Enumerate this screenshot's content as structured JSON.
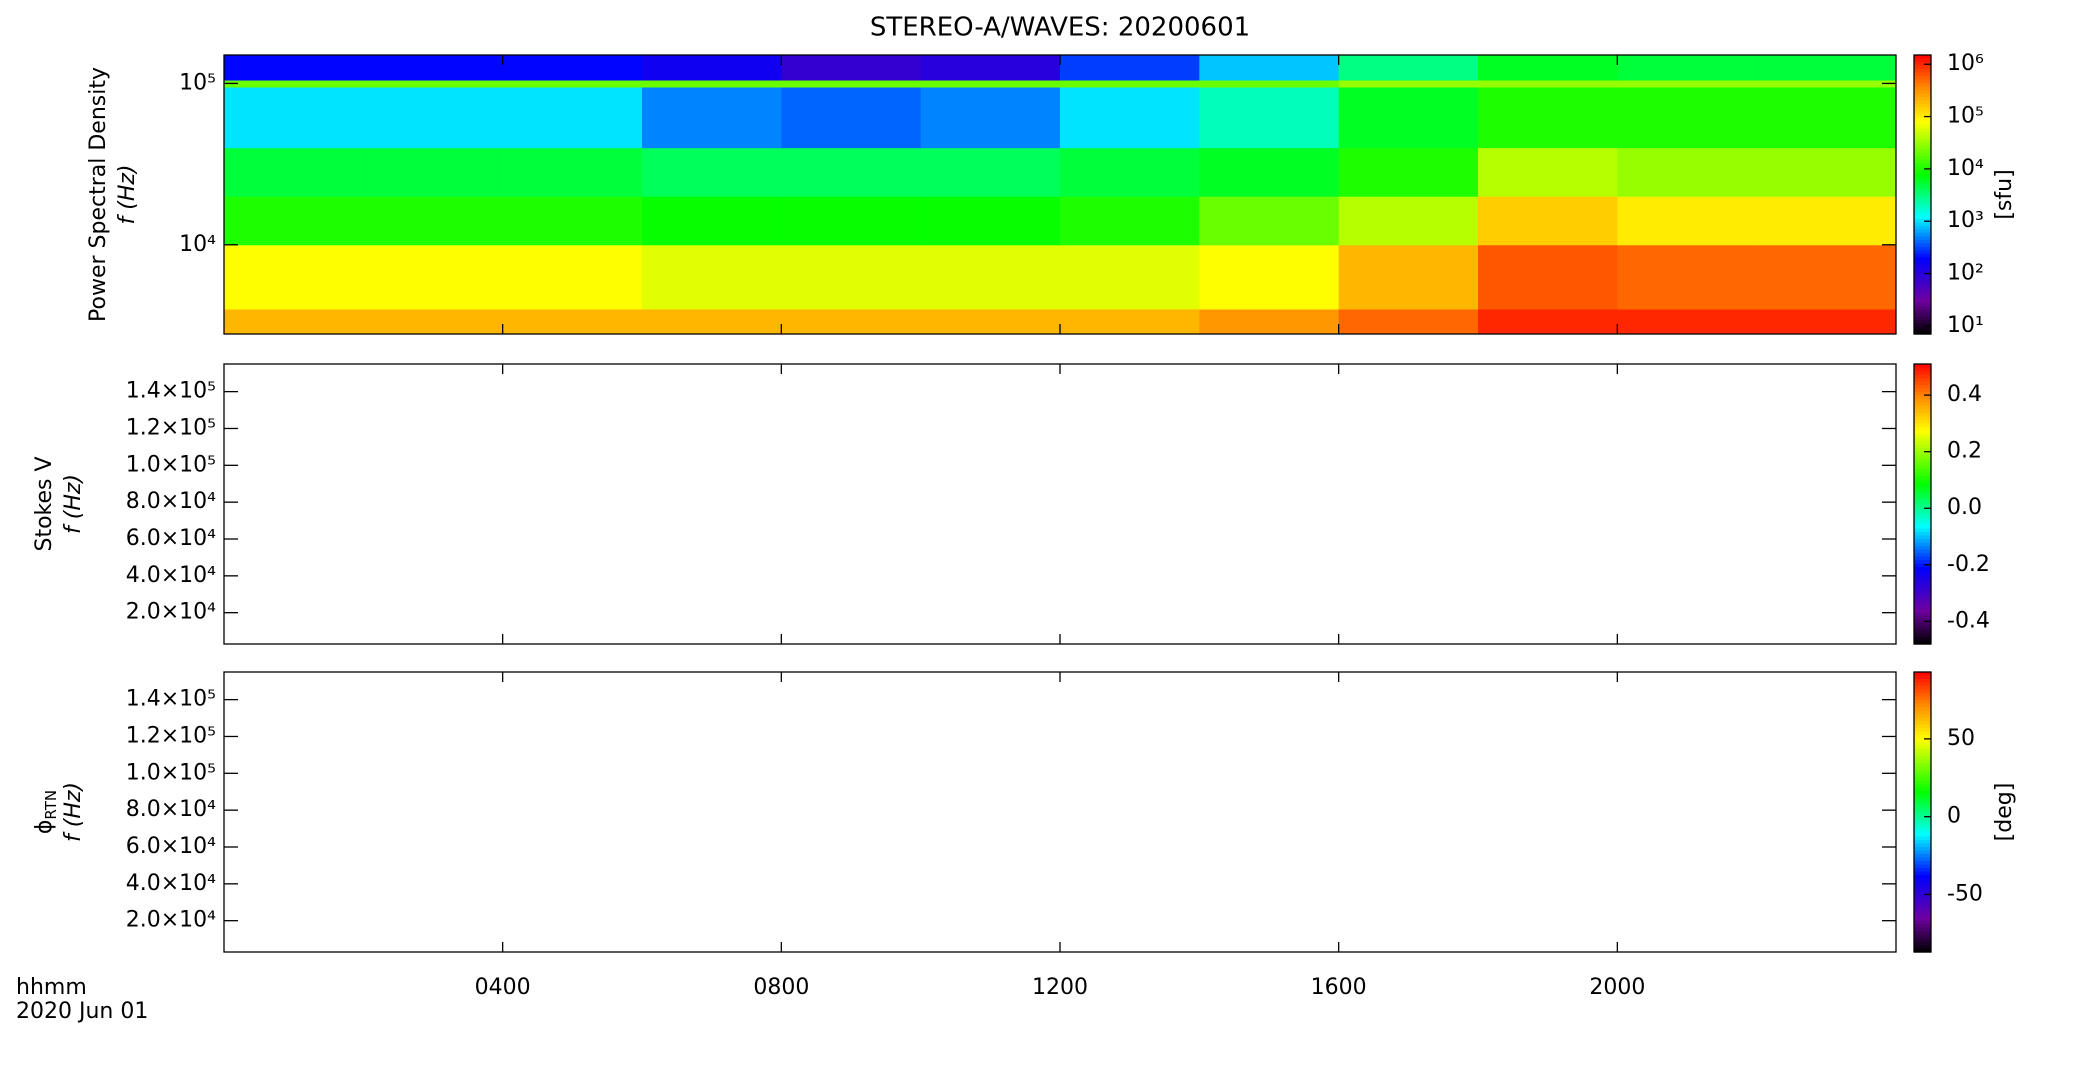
{
  "title": "STEREO-A/WAVES: 20200601",
  "x_axis": {
    "xlabel": "hhmm",
    "date": "2020 Jun 01",
    "xlim": [
      0,
      24
    ],
    "xticks": [
      {
        "value": 4,
        "label": "0400"
      },
      {
        "value": 8,
        "label": "0800"
      },
      {
        "value": 12,
        "label": "1200"
      },
      {
        "value": 16,
        "label": "1600"
      },
      {
        "value": 20,
        "label": "2000"
      }
    ]
  },
  "chart_data": [
    {
      "type": "heatmap",
      "ylabel": "Power Spectral Density",
      "ylabel2": "f (Hz)",
      "ylog": true,
      "ylim": [
        2800,
        150000
      ],
      "yticks": [
        {
          "value": 10000,
          "label": "10⁴"
        },
        {
          "value": 100000,
          "label": "10⁵"
        }
      ],
      "x_edges": [
        0,
        2,
        4,
        6,
        8,
        10,
        12,
        14,
        16,
        18,
        20,
        22,
        24
      ],
      "y_edges": [
        2800,
        4000,
        10000,
        20000,
        40000,
        95000,
        105000,
        150000
      ],
      "z": [
        [
          200000,
          200000,
          200000,
          200000,
          200000,
          200000,
          200000,
          300000,
          500000,
          1000000,
          1000000,
          1000000
        ],
        [
          80000,
          80000,
          80000,
          60000,
          60000,
          60000,
          60000,
          80000,
          200000,
          600000,
          500000,
          500000
        ],
        [
          10000,
          10000,
          10000,
          8000,
          8000,
          8000,
          10000,
          20000,
          40000,
          150000,
          100000,
          100000
        ],
        [
          5000,
          5000,
          5000,
          4000,
          4000,
          4000,
          5000,
          6000,
          10000,
          40000,
          30000,
          30000
        ],
        [
          1000,
          1000,
          1000,
          500,
          400,
          500,
          1000,
          2000,
          6000,
          10000,
          10000,
          10000
        ],
        [
          20000,
          20000,
          20000,
          20000,
          20000,
          20000,
          20000,
          20000,
          30000,
          30000,
          30000,
          30000
        ],
        [
          200,
          200,
          200,
          150,
          80,
          100,
          300,
          800,
          3000,
          6000,
          5000,
          5000
        ]
      ],
      "zlog": true,
      "zlim": [
        7,
        1500000
      ],
      "zticks": [
        {
          "value": 10,
          "label": "10¹"
        },
        {
          "value": 100,
          "label": "10²"
        },
        {
          "value": 1000,
          "label": "10³"
        },
        {
          "value": 10000,
          "label": "10⁴"
        },
        {
          "value": 100000,
          "label": "10⁵"
        },
        {
          "value": 1000000,
          "label": "10⁶"
        }
      ],
      "zlabel": "[sfu]"
    },
    {
      "type": "heatmap",
      "ylabel": "Stokes V",
      "ylabel2": "f (Hz)",
      "ylim": [
        3000,
        155000
      ],
      "yticks": [
        {
          "value": 20000,
          "label": "2.0×10⁴"
        },
        {
          "value": 40000,
          "label": "4.0×10⁴"
        },
        {
          "value": 60000,
          "label": "6.0×10⁴"
        },
        {
          "value": 80000,
          "label": "8.0×10⁴"
        },
        {
          "value": 100000,
          "label": "1.0×10⁵"
        },
        {
          "value": 120000,
          "label": "1.2×10⁵"
        },
        {
          "value": 140000,
          "label": "1.4×10⁵"
        }
      ],
      "zlim": [
        -0.48,
        0.51
      ],
      "zticks": [
        -0.4,
        -0.2,
        {
          "value": 0,
          "label": "0.0"
        },
        0.2,
        0.4
      ]
    },
    {
      "type": "heatmap",
      "ylabel": "ϕ",
      "ylabel_sub": "RTN",
      "ylabel2": "f (Hz)",
      "ylim": [
        3000,
        155000
      ],
      "yticks": [
        {
          "value": 20000,
          "label": "2.0×10⁴"
        },
        {
          "value": 40000,
          "label": "4.0×10⁴"
        },
        {
          "value": 60000,
          "label": "6.0×10⁴"
        },
        {
          "value": 80000,
          "label": "8.0×10⁴"
        },
        {
          "value": 100000,
          "label": "1.0×10⁵"
        },
        {
          "value": 120000,
          "label": "1.2×10⁵"
        },
        {
          "value": 140000,
          "label": "1.4×10⁵"
        }
      ],
      "zlim": [
        -87,
        93
      ],
      "zticks": [
        -50,
        0,
        50
      ],
      "zlabel": "[deg]"
    }
  ]
}
